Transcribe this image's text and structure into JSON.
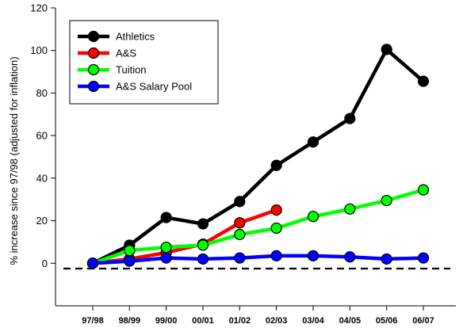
{
  "chart_data": {
    "type": "line",
    "ylabel": "% increase since 97/98 (adjusted for inflation)",
    "xlabel": "",
    "title": "",
    "categories": [
      "97/98",
      "98/99",
      "99/00",
      "00/01",
      "01/02",
      "02/03",
      "03/04",
      "04/05",
      "05/06",
      "06/07"
    ],
    "ylim": [
      -20,
      120
    ],
    "yticks": [
      0,
      20,
      40,
      60,
      80,
      100,
      120
    ],
    "reference_line": {
      "y": -2.5,
      "style": "dashed",
      "color": "#000000"
    },
    "legend_position": "top-left",
    "series": [
      {
        "name": "Athletics",
        "color": "#000000",
        "values": [
          0,
          8.5,
          21.5,
          18.5,
          29,
          46,
          57,
          68,
          100.5,
          85.5
        ]
      },
      {
        "name": "A&S",
        "color": "#ff0000",
        "values": [
          0,
          2,
          5,
          9,
          19,
          25,
          null,
          null,
          null,
          null
        ]
      },
      {
        "name": "Tuition",
        "color": "#00ff00",
        "values": [
          0,
          6,
          7.5,
          8.5,
          13.5,
          16.5,
          22,
          25.5,
          29.5,
          34.5
        ]
      },
      {
        "name": "A&S Salary Pool",
        "color": "#0000ff",
        "values": [
          0,
          1,
          2.5,
          2,
          2.5,
          3.5,
          3.5,
          3,
          2,
          2.5
        ]
      }
    ]
  }
}
